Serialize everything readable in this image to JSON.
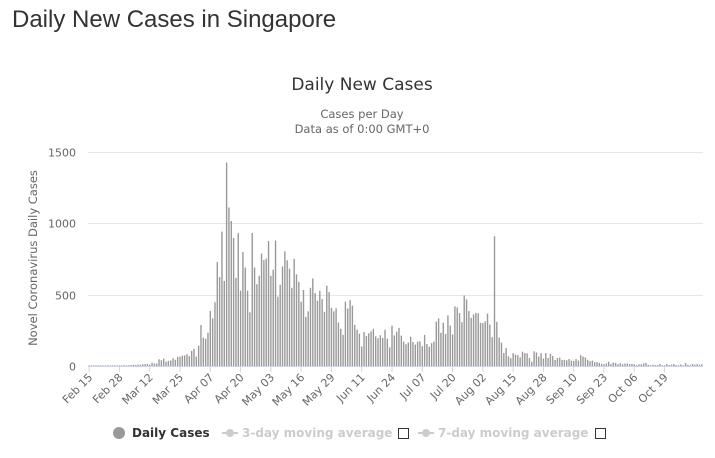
{
  "page": {
    "title": "Daily New Cases in Singapore"
  },
  "chart_data": {
    "type": "bar",
    "title": "Daily New Cases",
    "subtitle": "Cases per Day",
    "subtitle2": "Data as of 0:00 GMT+0",
    "ylabel": "Novel Coronavirus Daily Cases",
    "ylim": [
      0,
      1500
    ],
    "yticks": [
      0,
      500,
      1000,
      1500
    ],
    "grid": true,
    "legend_position": "bottom",
    "x_start": "2020-02-15",
    "x_end": "2020-10-24",
    "xtick_labels": [
      "Feb 15",
      "Feb 28",
      "Mar 12",
      "Mar 25",
      "Apr 07",
      "Apr 20",
      "May 03",
      "May 16",
      "May 29",
      "Jun 11",
      "Jun 24",
      "Jul 07",
      "Jul 20",
      "Aug 02",
      "Aug 15",
      "Aug 28",
      "Sep 10",
      "Sep 23",
      "Oct 06",
      "Oct 19"
    ],
    "bar_color": "#999999",
    "series": [
      {
        "name": "Daily Cases",
        "values": [
          2,
          1,
          3,
          2,
          3,
          1,
          2,
          1,
          2,
          3,
          2,
          3,
          2,
          4,
          3,
          5,
          4,
          5,
          6,
          8,
          7,
          10,
          9,
          12,
          13,
          14,
          9,
          23,
          18,
          17,
          47,
          40,
          52,
          30,
          36,
          39,
          55,
          44,
          64,
          65,
          73,
          74,
          83,
          69,
          106,
          120,
          66,
          142,
          287,
          198,
          191,
          233,
          386,
          334,
          447,
          728,
          623,
          942,
          596,
          1426,
          1111,
          1016,
          897,
          618,
          931,
          528,
          799,
          690,
          528,
          376,
          932,
          690,
          573,
          632,
          788,
          742,
          753,
          876,
          632,
          675,
          880,
          486,
          570,
          698,
          804,
          741,
          682,
          548,
          751,
          642,
          590,
          451,
          533,
          344,
          383,
          548,
          614,
          511,
          457,
          528,
          469,
          380,
          563,
          518,
          407,
          383,
          404,
          305,
          261,
          218,
          451,
          403,
          462,
          423,
          289,
          255,
          226,
          137,
          238,
          211,
          229,
          243,
          261,
          208,
          195,
          216,
          196,
          254,
          191,
          130,
          283,
          214,
          240,
          267,
          213,
          171,
          152,
          165,
          206,
          168,
          150,
          170,
          173,
          139,
          218,
          154,
          135,
          160,
          171,
          311,
          334,
          233,
          303,
          225,
          355,
          283,
          221,
          418,
          410,
          371,
          307,
          494,
          467,
          385,
          337,
          362,
          373,
          370,
          302,
          301,
          313,
          367,
          291,
          202,
          909,
          310,
          199,
          164,
          91,
          126,
          68,
          54,
          90,
          80,
          76,
          60,
          100,
          91,
          89,
          56,
          30,
          103,
          95,
          66,
          90,
          53,
          91,
          56,
          84,
          70,
          42,
          56,
          59,
          42,
          43,
          40,
          49,
          37,
          35,
          49,
          38,
          75,
          66,
          60,
          44,
          34,
          38,
          27,
          27,
          23,
          15,
          12,
          18,
          30,
          15,
          24,
          22,
          12,
          20,
          12,
          17,
          18,
          14,
          15,
          13,
          6,
          12,
          12,
          18,
          22,
          7,
          5,
          9,
          6,
          7,
          15,
          5,
          5,
          14,
          6,
          10,
          14,
          6,
          5,
          11,
          5,
          21,
          9,
          6,
          14,
          9,
          13,
          9,
          12
        ]
      }
    ],
    "legend": [
      {
        "label": "Daily Cases",
        "enabled": true
      },
      {
        "label": "3-day moving average",
        "enabled": false
      },
      {
        "label": "7-day moving average",
        "enabled": false
      }
    ]
  }
}
